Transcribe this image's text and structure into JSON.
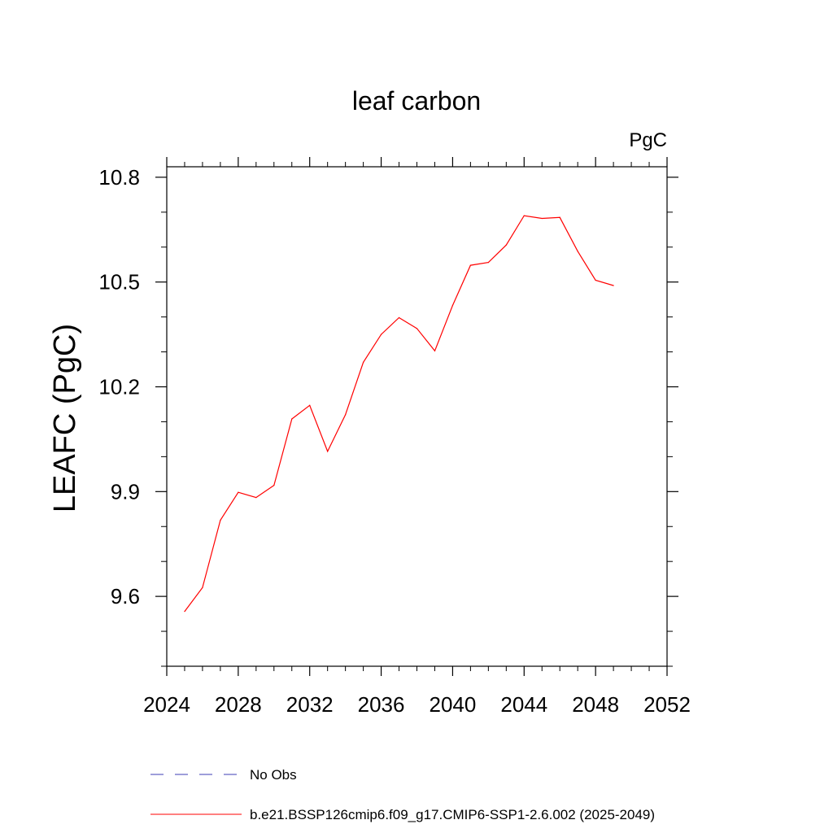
{
  "chart_data": {
    "type": "line",
    "title": "leaf carbon",
    "units": "PgC",
    "xlabel": "",
    "ylabel": "LEAFC  (PgC)",
    "xlim": [
      2024,
      2052
    ],
    "ylim": [
      9.4,
      10.83
    ],
    "x_ticks": [
      2024,
      2028,
      2032,
      2036,
      2040,
      2044,
      2048,
      2052
    ],
    "x_tick_labels": [
      "2024",
      "2028",
      "2032",
      "2036",
      "2040",
      "2044",
      "2048",
      "2052"
    ],
    "y_ticks": [
      9.6,
      9.9,
      10.2,
      10.5,
      10.8
    ],
    "y_tick_labels": [
      "9.6",
      "9.9",
      "10.2",
      "10.5",
      "10.8"
    ],
    "grid": false,
    "legend_position": "bottom",
    "series": [
      {
        "name": "b.e21.BSSP126cmip6.f09_g17.CMIP6-SSP1-2.6.002 (2025-2049)",
        "color": "#ff0000",
        "style": "solid",
        "x": [
          2025,
          2026,
          2027,
          2028,
          2029,
          2030,
          2031,
          2032,
          2033,
          2034,
          2035,
          2036,
          2037,
          2038,
          2039,
          2040,
          2041,
          2042,
          2043,
          2044,
          2045,
          2046,
          2047,
          2048,
          2049
        ],
        "values": [
          9.557,
          9.625,
          9.818,
          9.898,
          9.883,
          9.918,
          10.108,
          10.147,
          10.015,
          10.12,
          10.27,
          10.35,
          10.398,
          10.367,
          10.303,
          10.433,
          10.548,
          10.556,
          10.606,
          10.69,
          10.682,
          10.685,
          10.588,
          10.505,
          10.49
        ]
      }
    ],
    "legend": [
      {
        "label": "No Obs",
        "color": "#3c3cb4",
        "style": "dashed"
      },
      {
        "label": "b.e21.BSSP126cmip6.f09_g17.CMIP6-SSP1-2.6.002 (2025-2049)",
        "color": "#ff0000",
        "style": "solid"
      }
    ]
  }
}
